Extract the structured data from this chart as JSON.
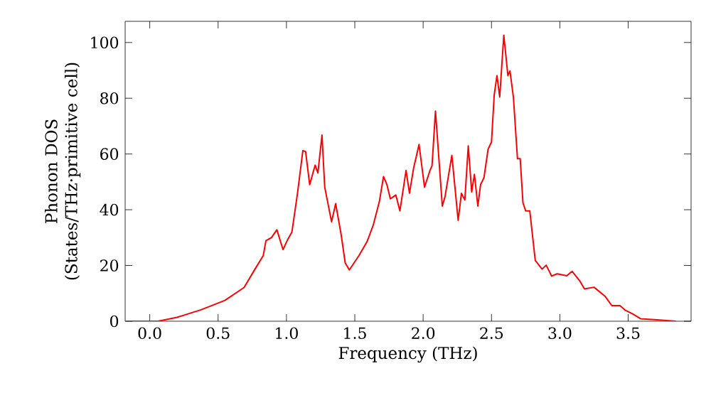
{
  "chart_data": {
    "type": "line",
    "xlabel": "Frequency (THz)",
    "ylabel": "Phonon DOS (States/THz·primitive cell)",
    "xlim": [
      -0.18,
      3.96
    ],
    "ylim": [
      0,
      107.6
    ],
    "xticks": [
      {
        "value": 0,
        "label": "0.0"
      },
      {
        "value": 0.5,
        "label": "0.5"
      },
      {
        "value": 1,
        "label": "1.0"
      },
      {
        "value": 1.5,
        "label": "1.5"
      },
      {
        "value": 2,
        "label": "2.0"
      },
      {
        "value": 2.5,
        "label": "2.5"
      },
      {
        "value": 3,
        "label": "3.0"
      },
      {
        "value": 3.5,
        "label": "3.5"
      }
    ],
    "yticks": [
      0,
      20,
      40,
      60,
      80,
      100
    ],
    "grid": false,
    "marker": "none",
    "line_style": "solid",
    "series": [
      {
        "color": "#ff0000",
        "x": [
          -0.18,
          0.06,
          0.2,
          0.375,
          0.55,
          0.69,
          0.77,
          0.83,
          0.85,
          0.89,
          0.93,
          0.975,
          1.01,
          1.04,
          1.08,
          1.12,
          1.14,
          1.17,
          1.21,
          1.23,
          1.26,
          1.28,
          1.33,
          1.36,
          1.4,
          1.43,
          1.46,
          1.53,
          1.59,
          1.635,
          1.68,
          1.71,
          1.735,
          1.76,
          1.8,
          1.83,
          1.875,
          1.9,
          1.93,
          1.97,
          2.01,
          2.05,
          2.065,
          2.09,
          2.14,
          2.16,
          2.21,
          2.256,
          2.28,
          2.305,
          2.33,
          2.355,
          2.375,
          2.4,
          2.42,
          2.445,
          2.475,
          2.5,
          2.52,
          2.54,
          2.56,
          2.59,
          2.62,
          2.635,
          2.66,
          2.69,
          2.71,
          2.73,
          2.75,
          2.78,
          2.82,
          2.87,
          2.9,
          2.94,
          2.98,
          3.05,
          3.09,
          3.145,
          3.18,
          3.25,
          3.33,
          3.38,
          3.44,
          3.48,
          3.53,
          3.59,
          3.71,
          3.85
        ],
        "values": [
          0,
          0,
          1.4,
          4.1,
          7.5,
          12.1,
          18.7,
          23.5,
          28.9,
          30,
          32.8,
          25.7,
          29.4,
          32,
          45.6,
          61.2,
          60.9,
          49,
          56,
          53.2,
          66.8,
          48.1,
          35.7,
          42.2,
          31.1,
          20.9,
          18.4,
          23.5,
          28.6,
          34.5,
          43,
          51.9,
          49,
          43.9,
          45.3,
          39.6,
          54.1,
          45.9,
          54.9,
          63.4,
          48.1,
          54.1,
          55.8,
          75.4,
          41.3,
          44.7,
          59.5,
          36.2,
          45.9,
          43.5,
          62.9,
          46.4,
          52.7,
          41.3,
          49,
          51.5,
          61.7,
          64.3,
          81.3,
          88.1,
          80.5,
          102.6,
          88.1,
          89.8,
          80.5,
          58.3,
          58.3,
          42.5,
          39.6,
          39.6,
          21.8,
          18.7,
          20.1,
          16.2,
          17,
          16.3,
          17.9,
          14.5,
          11.6,
          12.2,
          9,
          5.6,
          5.6,
          3.9,
          2.7,
          0.9,
          0.5,
          0
        ]
      }
    ]
  }
}
